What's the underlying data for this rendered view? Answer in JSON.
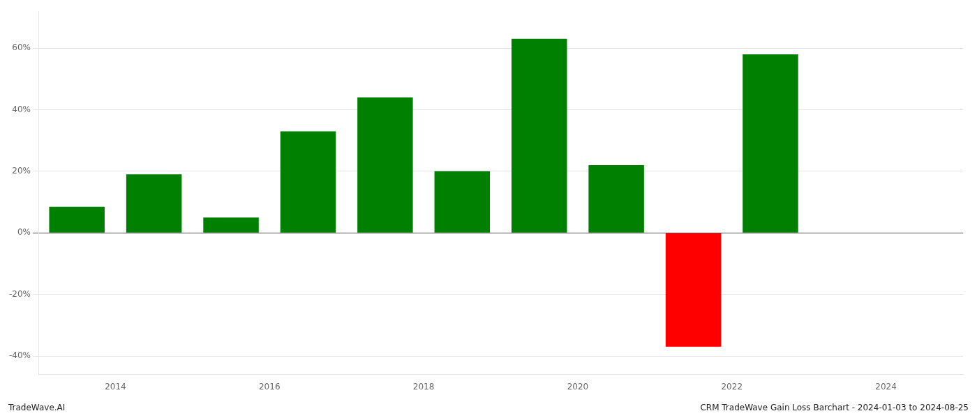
{
  "chart_data": {
    "type": "bar",
    "title": "CRM TradeWave Gain Loss Barchart - 2024-01-03 to 2024-08-25",
    "annotations": [
      "TradeWave.AI"
    ],
    "x": [
      2013.5,
      2014.5,
      2015.5,
      2016.5,
      2017.5,
      2018.5,
      2019.5,
      2020.5,
      2021.5,
      2022.5
    ],
    "values": [
      0.085,
      0.19,
      0.05,
      0.33,
      0.44,
      0.2,
      0.63,
      0.22,
      -0.37,
      0.58
    ],
    "colors": [
      "#008000",
      "#008000",
      "#008000",
      "#008000",
      "#008000",
      "#008000",
      "#008000",
      "#008000",
      "#ff0000",
      "#008000"
    ],
    "xlim": [
      2013,
      2025
    ],
    "xticks": [
      2014,
      2016,
      2018,
      2020,
      2022,
      2024
    ],
    "ylim": [
      -0.46,
      0.72
    ],
    "yticks": [
      {
        "value": -0.4,
        "label": "-40%"
      },
      {
        "value": -0.2,
        "label": "-20%"
      },
      {
        "value": 0.0,
        "label": "0%"
      },
      {
        "value": 0.2,
        "label": "20%"
      },
      {
        "value": 0.4,
        "label": "40%"
      },
      {
        "value": 0.6,
        "label": "60%"
      }
    ],
    "grid": true
  }
}
